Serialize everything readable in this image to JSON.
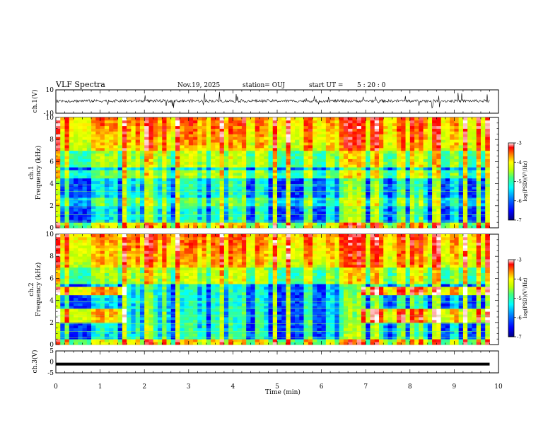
{
  "header": {
    "title": "VLF Spectra",
    "date": "Nov.19, 2025",
    "station": "station= OUJ",
    "start_label": "start  UT  =",
    "start_time": "5  : 20 : 0"
  },
  "chart_data": {
    "type": "heatmap",
    "x_axis": {
      "label": "Time  (min)",
      "range": [
        0,
        10
      ],
      "ticks": [
        "0",
        "1",
        "2",
        "3",
        "4",
        "5",
        "6",
        "7",
        "8",
        "9",
        "10"
      ]
    },
    "panels": [
      {
        "id": "ch1-waveform",
        "type": "line",
        "ylabel": "ch.1(V)",
        "yticks": [
          "10",
          "-10"
        ],
        "ylim": [
          -10,
          10
        ],
        "data_end_min": 9.8
      },
      {
        "id": "ch1-spectrogram",
        "type": "heatmap",
        "ylabel": "ch.1",
        "ylabel2": "Frequency  (kHz)",
        "ylim": [
          0,
          10
        ],
        "yticks": [
          "0",
          "2",
          "4",
          "6",
          "8",
          "10"
        ],
        "data_end_min": 9.8
      },
      {
        "id": "ch2-spectrogram",
        "type": "heatmap",
        "ylabel": "ch.2",
        "ylabel2": "Frequency  (kHz)",
        "ylim": [
          0,
          10
        ],
        "yticks": [
          "0",
          "2",
          "4",
          "6",
          "8",
          "10"
        ],
        "data_end_min": 9.8
      },
      {
        "id": "ch3-waveform",
        "type": "line",
        "ylabel": "ch.3(V)",
        "yticks": [
          "5",
          "0",
          "-5"
        ],
        "ylim": [
          -5,
          5
        ],
        "level_v": -1,
        "data_end_min": 9.8
      }
    ],
    "colorbar": {
      "label": "log(PSD)(V²/Hz)",
      "range": [
        -7,
        -3
      ],
      "ticks": [
        "-3",
        "-4",
        "-5",
        "-6",
        "-7"
      ],
      "colormap": [
        "#000080",
        "#0000ff",
        "#0080ff",
        "#00ffff",
        "#40ff80",
        "#c0ff00",
        "#ffff00",
        "#ff8000",
        "#ff0000",
        "#ffffff"
      ]
    }
  }
}
